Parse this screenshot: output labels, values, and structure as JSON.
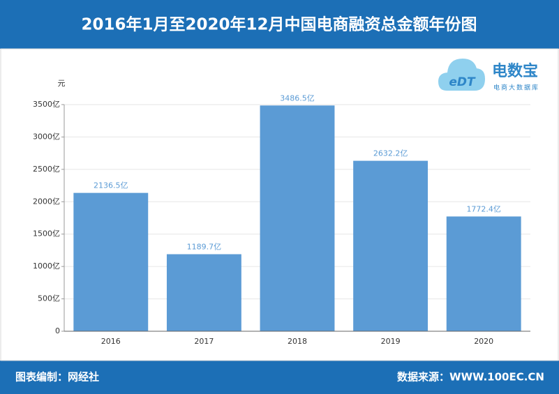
{
  "chart_data": {
    "type": "bar",
    "title": "2016年1月至2020年12月中国电商融资总金额年份图",
    "y_label": "元",
    "categories": [
      "2016",
      "2017",
      "2018",
      "2019",
      "2020"
    ],
    "values": [
      2136.5,
      1189.7,
      3486.5,
      2632.2,
      1772.4
    ],
    "value_labels": [
      "2136.5亿",
      "1189.7亿",
      "3486.5亿",
      "2632.2亿",
      "1772.4亿"
    ],
    "color": "#5b9bd5",
    "ylim": [
      0,
      3500
    ],
    "yticks": [
      0,
      {
        "value": 500,
        "label": "500亿"
      },
      {
        "value": 1000,
        "label": "1000亿"
      },
      {
        "value": 1500,
        "label": "1500亿"
      },
      {
        "value": 2000,
        "label": "2000亿"
      },
      {
        "value": 2500,
        "label": "2500亿"
      },
      {
        "value": 3000,
        "label": "3000亿"
      },
      {
        "value": 3500,
        "label": "3500亿"
      }
    ],
    "grid": true
  },
  "logo": {
    "mark": "eDT",
    "name": "电数宝",
    "subtitle": "电商大数据库"
  },
  "footer": {
    "left": "图表编制：网经社",
    "right": "数据来源：WWW.100EC.CN"
  }
}
